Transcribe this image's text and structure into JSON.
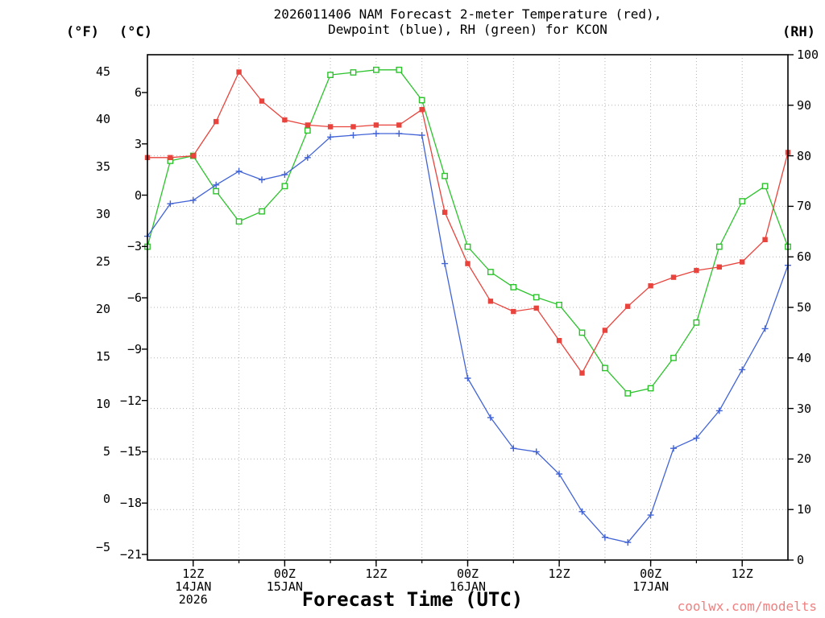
{
  "header": {
    "title_line1": "2026011406 NAM Forecast 2-meter Temperature (red),",
    "title_line2": "Dewpoint (blue), RH (green) for KCON"
  },
  "axes": {
    "left_outer_label": "(°F)",
    "left_inner_label": "(°C)",
    "right_label": "(RH)",
    "x_label": "Forecast Time (UTC)",
    "f_ticks": [
      45,
      40,
      35,
      30,
      25,
      20,
      15,
      10,
      5,
      0,
      -5
    ],
    "c_ticks": [
      6,
      3,
      0,
      -3,
      -6,
      -9,
      -12,
      -15,
      -18,
      -21
    ],
    "rh_ticks": [
      100,
      90,
      80,
      70,
      60,
      50,
      40,
      30,
      20,
      10,
      0
    ],
    "x_ticks": [
      {
        "t": 6,
        "label": "12Z",
        "date": "14JAN",
        "year": "2026"
      },
      {
        "t": 18,
        "label": "00Z",
        "date": "15JAN"
      },
      {
        "t": 30,
        "label": "12Z"
      },
      {
        "t": 42,
        "label": "00Z",
        "date": "16JAN"
      },
      {
        "t": 54,
        "label": "12Z"
      },
      {
        "t": 66,
        "label": "00Z",
        "date": "17JAN"
      },
      {
        "t": 78,
        "label": "12Z"
      }
    ]
  },
  "watermark": "coolwx.com/modelts",
  "colors": {
    "temperature": "#e8433c",
    "dewpoint": "#4163d6",
    "rh": "#2cc32c",
    "watermark": "#f08080",
    "grid": "#b3b3b3",
    "axis": "#000000"
  },
  "chart_data": {
    "type": "line",
    "title": "2026011406 NAM Forecast 2-meter Temperature (red), Dewpoint (blue), RH (green) for KCON",
    "station": "KCON",
    "model_run": "2026011406 NAM",
    "xlabel": "Forecast Time (UTC)",
    "x_unit": "hours since 2026-01-14 06Z",
    "x_max": 84,
    "x": [
      0,
      3,
      6,
      9,
      12,
      15,
      18,
      21,
      24,
      27,
      30,
      33,
      36,
      39,
      42,
      45,
      48,
      51,
      54,
      57,
      60,
      63,
      66,
      69,
      72,
      75,
      78,
      81,
      84
    ],
    "series": [
      {
        "name": "2-meter Temperature",
        "unit": "°C",
        "axis": "celsius",
        "color_key": "temperature",
        "marker": "square-filled",
        "values": [
          2.2,
          2.2,
          2.3,
          4.3,
          7.2,
          5.5,
          4.4,
          4.1,
          4.0,
          4.0,
          4.1,
          4.1,
          5.0,
          -1.0,
          -4.0,
          -6.2,
          -6.8,
          -6.6,
          -8.5,
          -10.4,
          -7.9,
          -6.5,
          -5.3,
          -4.8,
          -4.4,
          -4.2,
          -3.9,
          -2.6,
          2.5
        ]
      },
      {
        "name": "Dewpoint",
        "unit": "°C",
        "axis": "celsius",
        "color_key": "dewpoint",
        "marker": "plus",
        "values": [
          -2.4,
          -0.5,
          -0.3,
          0.6,
          1.4,
          0.9,
          1.2,
          2.2,
          3.4,
          3.5,
          3.6,
          3.6,
          3.5,
          -4.0,
          -10.7,
          -13.0,
          -14.8,
          -15.0,
          -16.3,
          -18.5,
          -20.0,
          -20.3,
          -18.7,
          -14.8,
          -14.2,
          -12.6,
          -10.2,
          -7.8,
          -4.1
        ]
      },
      {
        "name": "Relative Humidity",
        "unit": "%",
        "axis": "rh",
        "color_key": "rh",
        "marker": "square-open",
        "values": [
          62,
          79,
          80,
          73,
          67,
          69,
          74,
          85,
          96,
          96.5,
          97,
          97,
          91,
          76,
          62,
          57,
          54,
          52,
          50.5,
          45,
          38,
          33,
          34,
          40,
          47,
          62,
          71,
          74,
          62
        ]
      }
    ],
    "y_axes": {
      "celsius": {
        "ticks": [
          6,
          3,
          0,
          -3,
          -6,
          -9,
          -12,
          -15,
          -18,
          -21
        ],
        "display_min": -21.33,
        "display_max": 8.21
      },
      "fahrenheit": {
        "ticks": [
          45,
          40,
          35,
          30,
          25,
          20,
          15,
          10,
          5,
          0,
          -5
        ]
      },
      "rh": {
        "ticks": [
          100,
          90,
          80,
          70,
          60,
          50,
          40,
          30,
          20,
          10,
          0
        ],
        "display_min": 0,
        "display_max": 100
      }
    },
    "grid": "dotted, vertical every 6 h, horizontal every 10 RH",
    "legend_position": "encoded in title"
  }
}
